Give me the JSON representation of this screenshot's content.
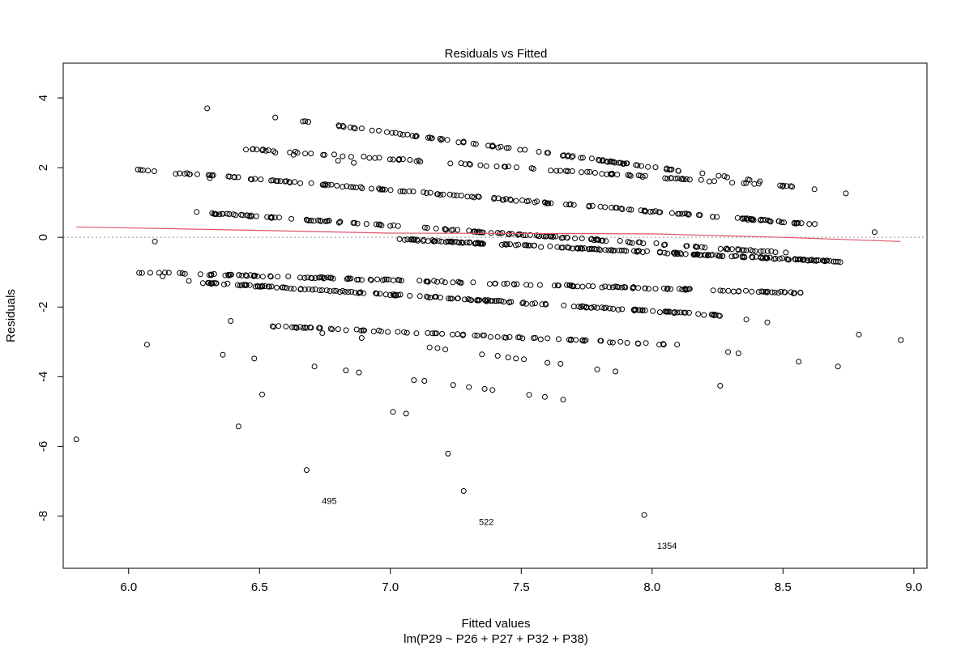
{
  "chart_data": {
    "type": "scatter",
    "title": "Residuals vs Fitted",
    "xlabel": "Fitted values",
    "subtitle": "lm(P29 ~ P26 + P27 + P32 + P38)",
    "ylabel": "Residuals",
    "xlim": [
      5.75,
      9.05
    ],
    "ylim": [
      -9.5,
      5.0
    ],
    "xticks": [
      6.0,
      6.5,
      7.0,
      7.5,
      8.0,
      8.5,
      9.0
    ],
    "xtick_labels": [
      "6.0",
      "6.5",
      "7.0",
      "7.5",
      "8.0",
      "8.5",
      "9.0"
    ],
    "yticks": [
      -8,
      -6,
      -4,
      -2,
      0,
      2,
      4
    ],
    "ytick_labels": [
      "-8",
      "-6",
      "-4",
      "-2",
      "0",
      "2",
      "4"
    ],
    "grid": false,
    "reference_line": {
      "y": 0,
      "style": "dotted",
      "color": "#999999"
    },
    "bands": [
      {
        "from": [
          6.65,
          3.35
        ],
        "to": [
          8.42,
          1.6
        ],
        "n": 95
      },
      {
        "from": [
          6.42,
          2.55
        ],
        "to": [
          8.55,
          1.45
        ],
        "n": 95
      },
      {
        "from": [
          6.03,
          1.95
        ],
        "to": [
          8.65,
          0.35
        ],
        "n": 170
      },
      {
        "from": [
          6.3,
          0.7
        ],
        "to": [
          8.52,
          -0.45
        ],
        "n": 150
      },
      {
        "from": [
          7.03,
          -0.05
        ],
        "to": [
          8.72,
          -0.7
        ],
        "n": 190
      },
      {
        "from": [
          6.04,
          -1.0
        ],
        "to": [
          8.58,
          -1.6
        ],
        "n": 160
      },
      {
        "from": [
          6.28,
          -1.3
        ],
        "to": [
          8.28,
          -2.25
        ],
        "n": 170
      },
      {
        "from": [
          6.55,
          -2.55
        ],
        "to": [
          8.12,
          -3.1
        ],
        "n": 80
      }
    ],
    "points": [
      {
        "x": 5.8,
        "y": -5.8
      },
      {
        "x": 6.04,
        "y": -1.02
      },
      {
        "x": 6.07,
        "y": -3.08
      },
      {
        "x": 6.1,
        "y": -0.12
      },
      {
        "x": 6.13,
        "y": -1.12
      },
      {
        "x": 6.18,
        "y": 1.82
      },
      {
        "x": 6.23,
        "y": -1.25
      },
      {
        "x": 6.26,
        "y": 0.73
      },
      {
        "x": 6.3,
        "y": 3.7
      },
      {
        "x": 6.31,
        "y": 1.7
      },
      {
        "x": 6.36,
        "y": -3.37
      },
      {
        "x": 6.39,
        "y": -2.4
      },
      {
        "x": 6.42,
        "y": -5.43
      },
      {
        "x": 6.48,
        "y": -3.48
      },
      {
        "x": 6.51,
        "y": -4.51
      },
      {
        "x": 6.56,
        "y": 3.44
      },
      {
        "x": 6.56,
        "y": 2.43
      },
      {
        "x": 6.63,
        "y": 2.37
      },
      {
        "x": 6.68,
        "y": -6.68
      },
      {
        "x": 6.71,
        "y": -3.71
      },
      {
        "x": 6.74,
        "y": -2.75
      },
      {
        "x": 6.8,
        "y": 2.2
      },
      {
        "x": 6.83,
        "y": -3.82
      },
      {
        "x": 6.86,
        "y": 2.14
      },
      {
        "x": 6.88,
        "y": -3.88
      },
      {
        "x": 6.89,
        "y": -2.89
      },
      {
        "x": 7.01,
        "y": -5.01
      },
      {
        "x": 7.06,
        "y": -5.06
      },
      {
        "x": 7.09,
        "y": -4.1
      },
      {
        "x": 7.13,
        "y": -4.12
      },
      {
        "x": 7.15,
        "y": -3.16
      },
      {
        "x": 7.18,
        "y": -3.18
      },
      {
        "x": 7.21,
        "y": -3.22
      },
      {
        "x": 7.22,
        "y": -6.21
      },
      {
        "x": 7.24,
        "y": -4.24
      },
      {
        "x": 7.28,
        "y": -7.28
      },
      {
        "x": 7.3,
        "y": -4.3
      },
      {
        "x": 7.35,
        "y": -3.36
      },
      {
        "x": 7.36,
        "y": -4.35
      },
      {
        "x": 7.39,
        "y": -4.38
      },
      {
        "x": 7.41,
        "y": -3.4
      },
      {
        "x": 7.45,
        "y": -3.45
      },
      {
        "x": 7.48,
        "y": -3.48
      },
      {
        "x": 7.51,
        "y": -3.5
      },
      {
        "x": 7.53,
        "y": -4.52
      },
      {
        "x": 7.59,
        "y": -4.58
      },
      {
        "x": 7.6,
        "y": -3.6
      },
      {
        "x": 7.65,
        "y": -3.63
      },
      {
        "x": 7.66,
        "y": -4.66
      },
      {
        "x": 7.79,
        "y": -3.79
      },
      {
        "x": 7.86,
        "y": -3.85
      },
      {
        "x": 7.97,
        "y": -7.97
      },
      {
        "x": 8.26,
        "y": -4.26
      },
      {
        "x": 8.29,
        "y": -3.29
      },
      {
        "x": 8.33,
        "y": -3.33
      },
      {
        "x": 8.36,
        "y": -2.36
      },
      {
        "x": 8.44,
        "y": -2.44
      },
      {
        "x": 8.56,
        "y": -3.57
      },
      {
        "x": 8.71,
        "y": -3.71
      },
      {
        "x": 8.71,
        "y": -0.7
      },
      {
        "x": 8.74,
        "y": 1.26
      },
      {
        "x": 8.79,
        "y": -2.79
      },
      {
        "x": 8.85,
        "y": 0.15
      },
      {
        "x": 8.95,
        "y": -2.95
      },
      {
        "x": 8.62,
        "y": 1.38
      },
      {
        "x": 8.53,
        "y": 1.47
      }
    ],
    "labeled_points": [
      {
        "label": "495",
        "x": 6.68,
        "y": -6.68
      },
      {
        "label": "522",
        "x": 7.28,
        "y": -7.28
      },
      {
        "label": "1354",
        "x": 7.97,
        "y": -7.97
      }
    ],
    "smooth_line": {
      "color": "#DF536B",
      "x": [
        5.8,
        6.5,
        7.0,
        7.5,
        8.0,
        8.5,
        8.95
      ],
      "y": [
        0.3,
        0.2,
        0.12,
        0.11,
        0.1,
        0.0,
        -0.12
      ]
    }
  }
}
